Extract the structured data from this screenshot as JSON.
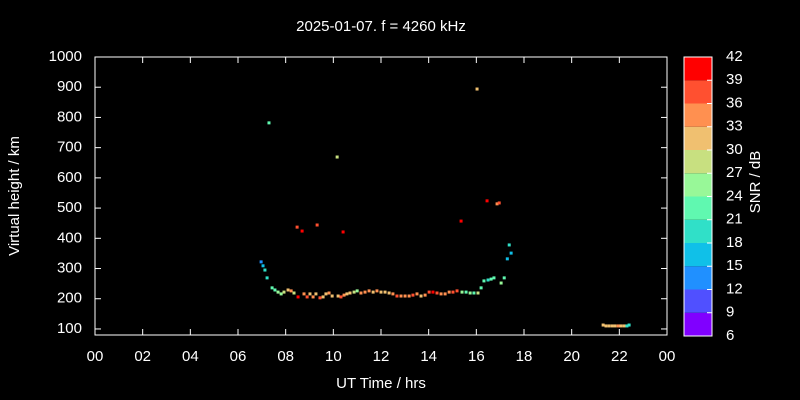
{
  "chart_data": {
    "type": "scatter",
    "title": "2025-01-07. f = 4260 kHz",
    "x_label": "UT Time / hrs",
    "y_label": "Virtual height / km",
    "xlim": [
      0,
      24
    ],
    "xticks": [
      {
        "value": 0,
        "label": "00"
      },
      {
        "value": 2,
        "label": "02"
      },
      {
        "value": 4,
        "label": "04"
      },
      {
        "value": 6,
        "label": "06"
      },
      {
        "value": 8,
        "label": "08"
      },
      10,
      12,
      14,
      16,
      18,
      20,
      22,
      {
        "value": 24,
        "label": "00"
      }
    ],
    "ylim": [
      80,
      1000
    ],
    "yticks": [
      100,
      200,
      300,
      400,
      500,
      600,
      700,
      800,
      900,
      1000
    ],
    "x": [
      6.97,
      7.05,
      7.13,
      7.22,
      7.3,
      7.43,
      7.55,
      7.68,
      7.81,
      7.93,
      8.1,
      8.23,
      8.35,
      8.48,
      8.52,
      8.69,
      8.77,
      8.9,
      9.02,
      9.15,
      9.27,
      9.32,
      9.44,
      9.57,
      9.69,
      9.82,
      9.95,
      10.16,
      10.2,
      10.32,
      10.41,
      10.45,
      10.57,
      10.7,
      10.87,
      11.0,
      11.16,
      11.33,
      11.5,
      11.67,
      11.83,
      12.0,
      12.17,
      12.34,
      12.5,
      12.67,
      12.84,
      13.01,
      13.18,
      13.34,
      13.51,
      13.68,
      13.85,
      14.02,
      14.18,
      14.35,
      14.52,
      14.69,
      14.86,
      15.02,
      15.19,
      15.36,
      15.4,
      15.57,
      15.74,
      15.9,
      16.03,
      16.07,
      16.2,
      16.32,
      16.45,
      16.49,
      16.62,
      16.74,
      16.87,
      16.96,
      17.04,
      17.17,
      17.3,
      17.38,
      17.46,
      21.32,
      21.44,
      21.57,
      21.7,
      21.82,
      21.95,
      22.07,
      22.2,
      22.32,
      22.41
    ],
    "values": [
      322,
      309,
      295,
      269,
      782,
      236,
      229,
      222,
      216,
      222,
      229,
      226,
      219,
      437,
      206,
      424,
      216,
      206,
      216,
      206,
      216,
      444,
      203,
      206,
      216,
      219,
      209,
      669,
      209,
      206,
      421,
      212,
      216,
      219,
      222,
      226,
      219,
      222,
      226,
      222,
      226,
      222,
      222,
      219,
      216,
      209,
      209,
      209,
      209,
      212,
      216,
      209,
      212,
      222,
      222,
      219,
      216,
      216,
      222,
      222,
      226,
      457,
      222,
      222,
      219,
      219,
      894,
      219,
      236,
      259,
      524,
      262,
      265,
      269,
      514,
      517,
      252,
      269,
      332,
      378,
      351,
      113,
      110,
      110,
      110,
      110,
      110,
      110,
      110,
      110,
      113
    ],
    "snr": [
      14,
      16,
      18,
      19,
      22,
      21,
      22,
      24,
      26,
      27,
      31,
      33,
      29,
      38,
      40,
      42,
      33,
      36,
      30,
      35,
      31,
      36,
      36,
      32,
      30,
      33,
      30,
      29,
      32,
      36,
      40,
      33,
      31,
      30,
      28,
      26,
      34,
      33,
      35,
      30,
      34,
      30,
      32,
      30,
      33,
      36,
      34,
      35,
      33,
      36,
      33,
      31,
      35,
      38,
      40,
      36,
      33,
      35,
      33,
      36,
      38,
      39,
      24,
      22,
      24,
      22,
      30,
      28,
      21,
      22,
      39,
      20,
      22,
      21,
      33,
      36,
      25,
      23,
      15,
      19,
      15,
      31,
      30,
      31,
      32,
      31,
      33,
      30,
      31,
      20,
      20
    ],
    "colorbar": {
      "label": "SNR / dB",
      "lim": [
        6,
        42
      ],
      "ticks": [
        6,
        9,
        12,
        15,
        18,
        21,
        24,
        27,
        30,
        33,
        36,
        39,
        42
      ],
      "colors": [
        "#8000ff",
        "#5050ff",
        "#2090ff",
        "#10c0e8",
        "#30e0c8",
        "#60f8b0",
        "#98f898",
        "#c8e080",
        "#f0c070",
        "#ff9050",
        "#ff5030",
        "#ff0000"
      ]
    }
  }
}
